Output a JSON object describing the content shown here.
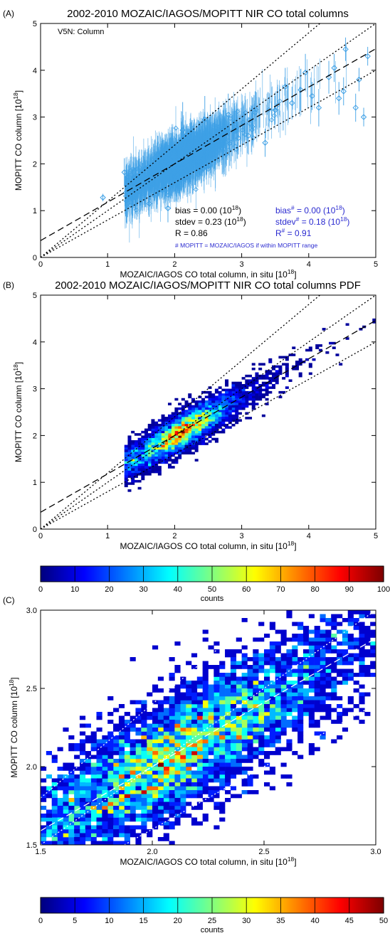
{
  "chart_data": [
    {
      "panel": "(A)",
      "type": "scatter",
      "title": "2002-2010 MOZAIC/IAGOS/MOPITT NIR CO total columns",
      "xlabel": "MOZAIC/IAGOS CO total column, in situ [10",
      "xlabel_exp": "18",
      "xlabel_end": "]",
      "ylabel": "MOPITT CO column [10",
      "ylabel_exp": "18",
      "ylabel_end": "]",
      "xlim": [
        0,
        5
      ],
      "ylim": [
        0,
        5
      ],
      "x_ticks": [
        "0",
        "1",
        "2",
        "3",
        "4",
        "5"
      ],
      "y_ticks": [
        "0",
        "1",
        "2",
        "3",
        "4",
        "5"
      ],
      "corner_note": "V5N: Column",
      "marker_color": "#3ea0e6",
      "stats_black": {
        "bias": "bias = 0.00 (10",
        "bias_exp": "18",
        "bias_end": ")",
        "stdev": "stdev = 0.23 (10",
        "stdev_exp": "18",
        "stdev_end": ")",
        "r": "R = 0.86"
      },
      "stats_blue": {
        "bias": "bias",
        "bias_sup": "#",
        "bias_rest": " = 0.00 (10",
        "bias_exp": "18",
        "bias_end": ")",
        "stdev": "stdev",
        "stdev_sup": "#",
        "stdev_rest": " = 0.18 (10",
        "stdev_exp": "18",
        "stdev_end": ")",
        "r": "R",
        "r_sup": "#",
        "r_rest": " = 0.91"
      },
      "note": "# MOPITT = MOZAIC/IAGOS if within MOPITT range",
      "reference_lines": {
        "one_to_one": {
          "slope": 1.0,
          "intercept": 0.0
        },
        "plus_20pct": {
          "slope": 1.2,
          "intercept": 0.0
        },
        "minus_20pct": {
          "slope": 0.8,
          "intercept": 0.0
        },
        "regression": {
          "slope": 0.82,
          "intercept": 0.36
        }
      },
      "highlight_points": [
        {
          "x": 0.93,
          "y": 1.28,
          "err": 0.08
        },
        {
          "x": 1.25,
          "y": 1.82,
          "err": 0.3
        },
        {
          "x": 1.35,
          "y": 1.45,
          "err": 0.35
        },
        {
          "x": 1.52,
          "y": 1.72,
          "err": 0.3
        },
        {
          "x": 1.62,
          "y": 1.15,
          "err": 0.28
        },
        {
          "x": 1.75,
          "y": 2.2,
          "err": 0.4
        },
        {
          "x": 1.9,
          "y": 1.05,
          "err": 0.3
        },
        {
          "x": 2.12,
          "y": 2.72,
          "err": 0.6
        },
        {
          "x": 2.3,
          "y": 1.9,
          "err": 0.35
        },
        {
          "x": 2.45,
          "y": 2.95,
          "err": 0.5
        },
        {
          "x": 2.6,
          "y": 2.3,
          "err": 0.4
        },
        {
          "x": 2.8,
          "y": 3.05,
          "err": 0.45
        },
        {
          "x": 2.95,
          "y": 2.55,
          "err": 0.35
        },
        {
          "x": 3.1,
          "y": 2.6,
          "err": 0.4
        },
        {
          "x": 3.2,
          "y": 3.1,
          "err": 0.45
        },
        {
          "x": 3.35,
          "y": 2.45,
          "err": 0.3
        },
        {
          "x": 3.5,
          "y": 3.15,
          "err": 0.3
        },
        {
          "x": 3.65,
          "y": 3.65,
          "err": 0.4
        },
        {
          "x": 3.75,
          "y": 3.3,
          "err": 0.35
        },
        {
          "x": 3.88,
          "y": 3.58,
          "err": 0.45
        },
        {
          "x": 3.95,
          "y": 3.95,
          "err": 0.4
        },
        {
          "x": 4.05,
          "y": 3.45,
          "err": 0.3
        },
        {
          "x": 4.15,
          "y": 3.2,
          "err": 0.4
        },
        {
          "x": 4.3,
          "y": 3.85,
          "err": 0.35
        },
        {
          "x": 4.38,
          "y": 4.05,
          "err": 0.3
        },
        {
          "x": 4.45,
          "y": 3.4,
          "err": 0.35
        },
        {
          "x": 4.52,
          "y": 3.55,
          "err": 0.3
        },
        {
          "x": 4.55,
          "y": 4.45,
          "err": 0.25
        },
        {
          "x": 4.7,
          "y": 3.2,
          "err": 0.3
        },
        {
          "x": 4.75,
          "y": 3.8,
          "err": 0.25
        },
        {
          "x": 4.82,
          "y": 3.0,
          "err": 0.2
        },
        {
          "x": 4.88,
          "y": 4.3,
          "err": 0.2
        }
      ]
    },
    {
      "panel": "(B)",
      "type": "heatmap",
      "title": "2002-2010 MOZAIC/IAGOS/MOPITT NIR CO total columns PDF",
      "xlabel": "MOZAIC/IAGOS CO total column, in situ [10",
      "xlabel_exp": "18",
      "xlabel_end": "]",
      "ylabel": "MOPITT CO column [10",
      "ylabel_exp": "18",
      "ylabel_end": "]",
      "xlim": [
        0,
        5
      ],
      "ylim": [
        0,
        5
      ],
      "x_ticks": [
        "0",
        "1",
        "2",
        "3",
        "4",
        "5"
      ],
      "y_ticks": [
        "0",
        "1",
        "2",
        "3",
        "4",
        "5"
      ],
      "bin_size": 0.05,
      "peak_counts": 100,
      "density_peak": {
        "x": 2.0,
        "y": 2.0
      },
      "reference_lines": {
        "one_to_one": {
          "slope": 1.0,
          "intercept": 0.0
        },
        "plus_20pct": {
          "slope": 1.2,
          "intercept": 0.0
        },
        "minus_20pct": {
          "slope": 0.8,
          "intercept": 0.0
        },
        "regression": {
          "slope": 0.82,
          "intercept": 0.36
        }
      },
      "colorbar": {
        "label": "counts",
        "min": 0,
        "max": 100,
        "ticks": [
          "0",
          "10",
          "20",
          "30",
          "40",
          "50",
          "60",
          "70",
          "80",
          "90",
          "100"
        ]
      }
    },
    {
      "panel": "(C)",
      "type": "heatmap",
      "xlabel": "MOZAIC/IAGOS CO total column, in situ [10",
      "xlabel_exp": "18",
      "xlabel_end": "]",
      "ylabel": "MOPITT CO column [10",
      "ylabel_exp": "18",
      "ylabel_end": "]",
      "xlim": [
        1.5,
        3.0
      ],
      "ylim": [
        1.5,
        3.0
      ],
      "x_ticks": [
        "1.5",
        "2.0",
        "2.5",
        "3.0"
      ],
      "y_ticks": [
        "1.5",
        "2.0",
        "2.5",
        "3.0"
      ],
      "bin_size": 0.025,
      "peak_counts": 50,
      "density_peak": {
        "x": 1.97,
        "y": 1.97
      },
      "reference_lines": {
        "one_to_one": {
          "slope": 1.0,
          "intercept": 0.0
        },
        "plus_20pct": {
          "slope": 1.2,
          "intercept": 0.0
        },
        "minus_20pct": {
          "slope": 0.8,
          "intercept": 0.0
        },
        "regression": {
          "slope": 0.82,
          "intercept": 0.36
        }
      },
      "colorbar": {
        "label": "counts",
        "min": 0,
        "max": 50,
        "ticks": [
          "0",
          "5",
          "10",
          "15",
          "20",
          "25",
          "30",
          "35",
          "40",
          "45",
          "50"
        ]
      }
    }
  ]
}
